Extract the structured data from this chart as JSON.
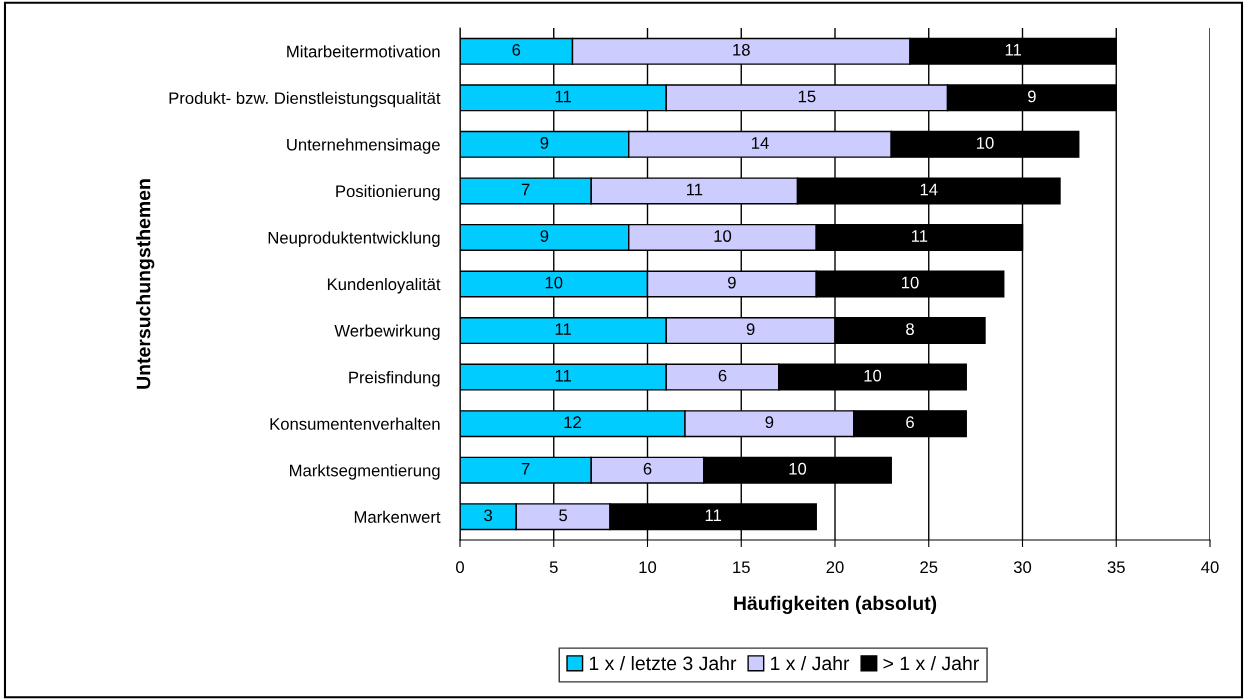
{
  "chart_data": {
    "type": "bar",
    "orientation": "horizontal",
    "stacked": true,
    "xlabel": "Häufigkeiten (absolut)",
    "ylabel": "Untersuchungsthemen",
    "categories": [
      "Mitarbeitermotivation",
      "Produkt- bzw. Dienstleistungsqualität",
      "Unternehmensimage",
      "Positionierung",
      "Neuproduktentwicklung",
      "Kundenloyalität",
      "Werbewirkung",
      "Preisfindung",
      "Konsumentenverhalten",
      "Marktsegmentierung",
      "Markenwert"
    ],
    "series": [
      {
        "name": "1 x / letzte 3 Jahr",
        "color": "#00ccff",
        "values": [
          6,
          11,
          9,
          7,
          9,
          10,
          11,
          11,
          12,
          7,
          3
        ]
      },
      {
        "name": "1 x / Jahr",
        "color": "#ccccff",
        "values": [
          18,
          15,
          14,
          11,
          10,
          9,
          9,
          6,
          9,
          6,
          5
        ]
      },
      {
        "name": "> 1 x / Jahr",
        "color": "#000000",
        "values": [
          11,
          9,
          10,
          14,
          11,
          10,
          8,
          10,
          6,
          10,
          11
        ]
      }
    ],
    "xlim": [
      0,
      40
    ],
    "xticks": [
      0,
      5,
      10,
      15,
      20,
      25,
      30,
      35,
      40
    ],
    "grid": "x",
    "legend": "bottom",
    "data_labels": true
  }
}
